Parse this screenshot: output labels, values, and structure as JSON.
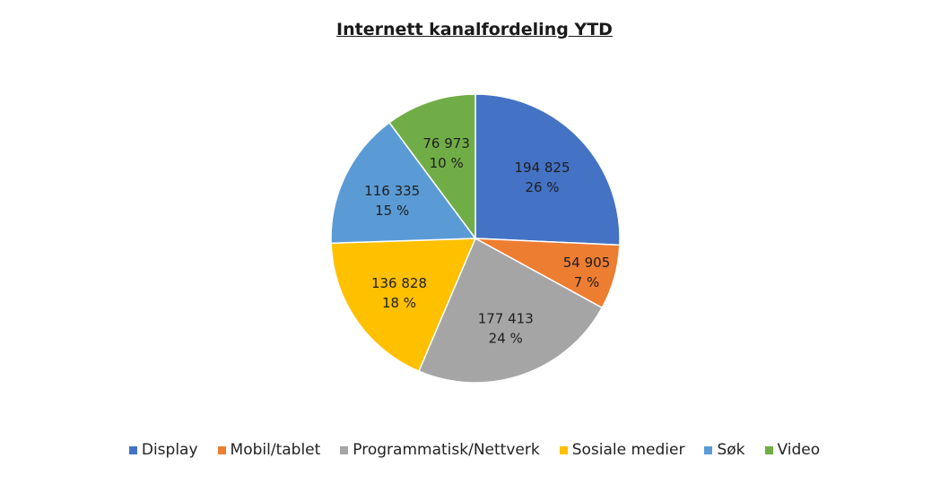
{
  "chart_data": {
    "type": "pie",
    "title": "Internett kanalfordeling YTD",
    "categories": [
      "Display",
      "Mobil/tablet",
      "Programmatisk/Nettverk",
      "Sosiale medier",
      "Søk",
      "Video"
    ],
    "values": [
      194825,
      54905,
      177413,
      136828,
      116335,
      76973
    ],
    "value_labels": [
      "194 825",
      "54 905",
      "177 413",
      "136 828",
      "116 335",
      "76 973"
    ],
    "percent_labels": [
      "26 %",
      "7 %",
      "24 %",
      "18 %",
      "15 %",
      "10 %"
    ],
    "colors": [
      "#4472C4",
      "#ED7D31",
      "#A5A5A5",
      "#FFC000",
      "#5B9BD5",
      "#70AD47"
    ],
    "legend_position": "bottom",
    "start_angle": "top",
    "direction": "clockwise"
  }
}
